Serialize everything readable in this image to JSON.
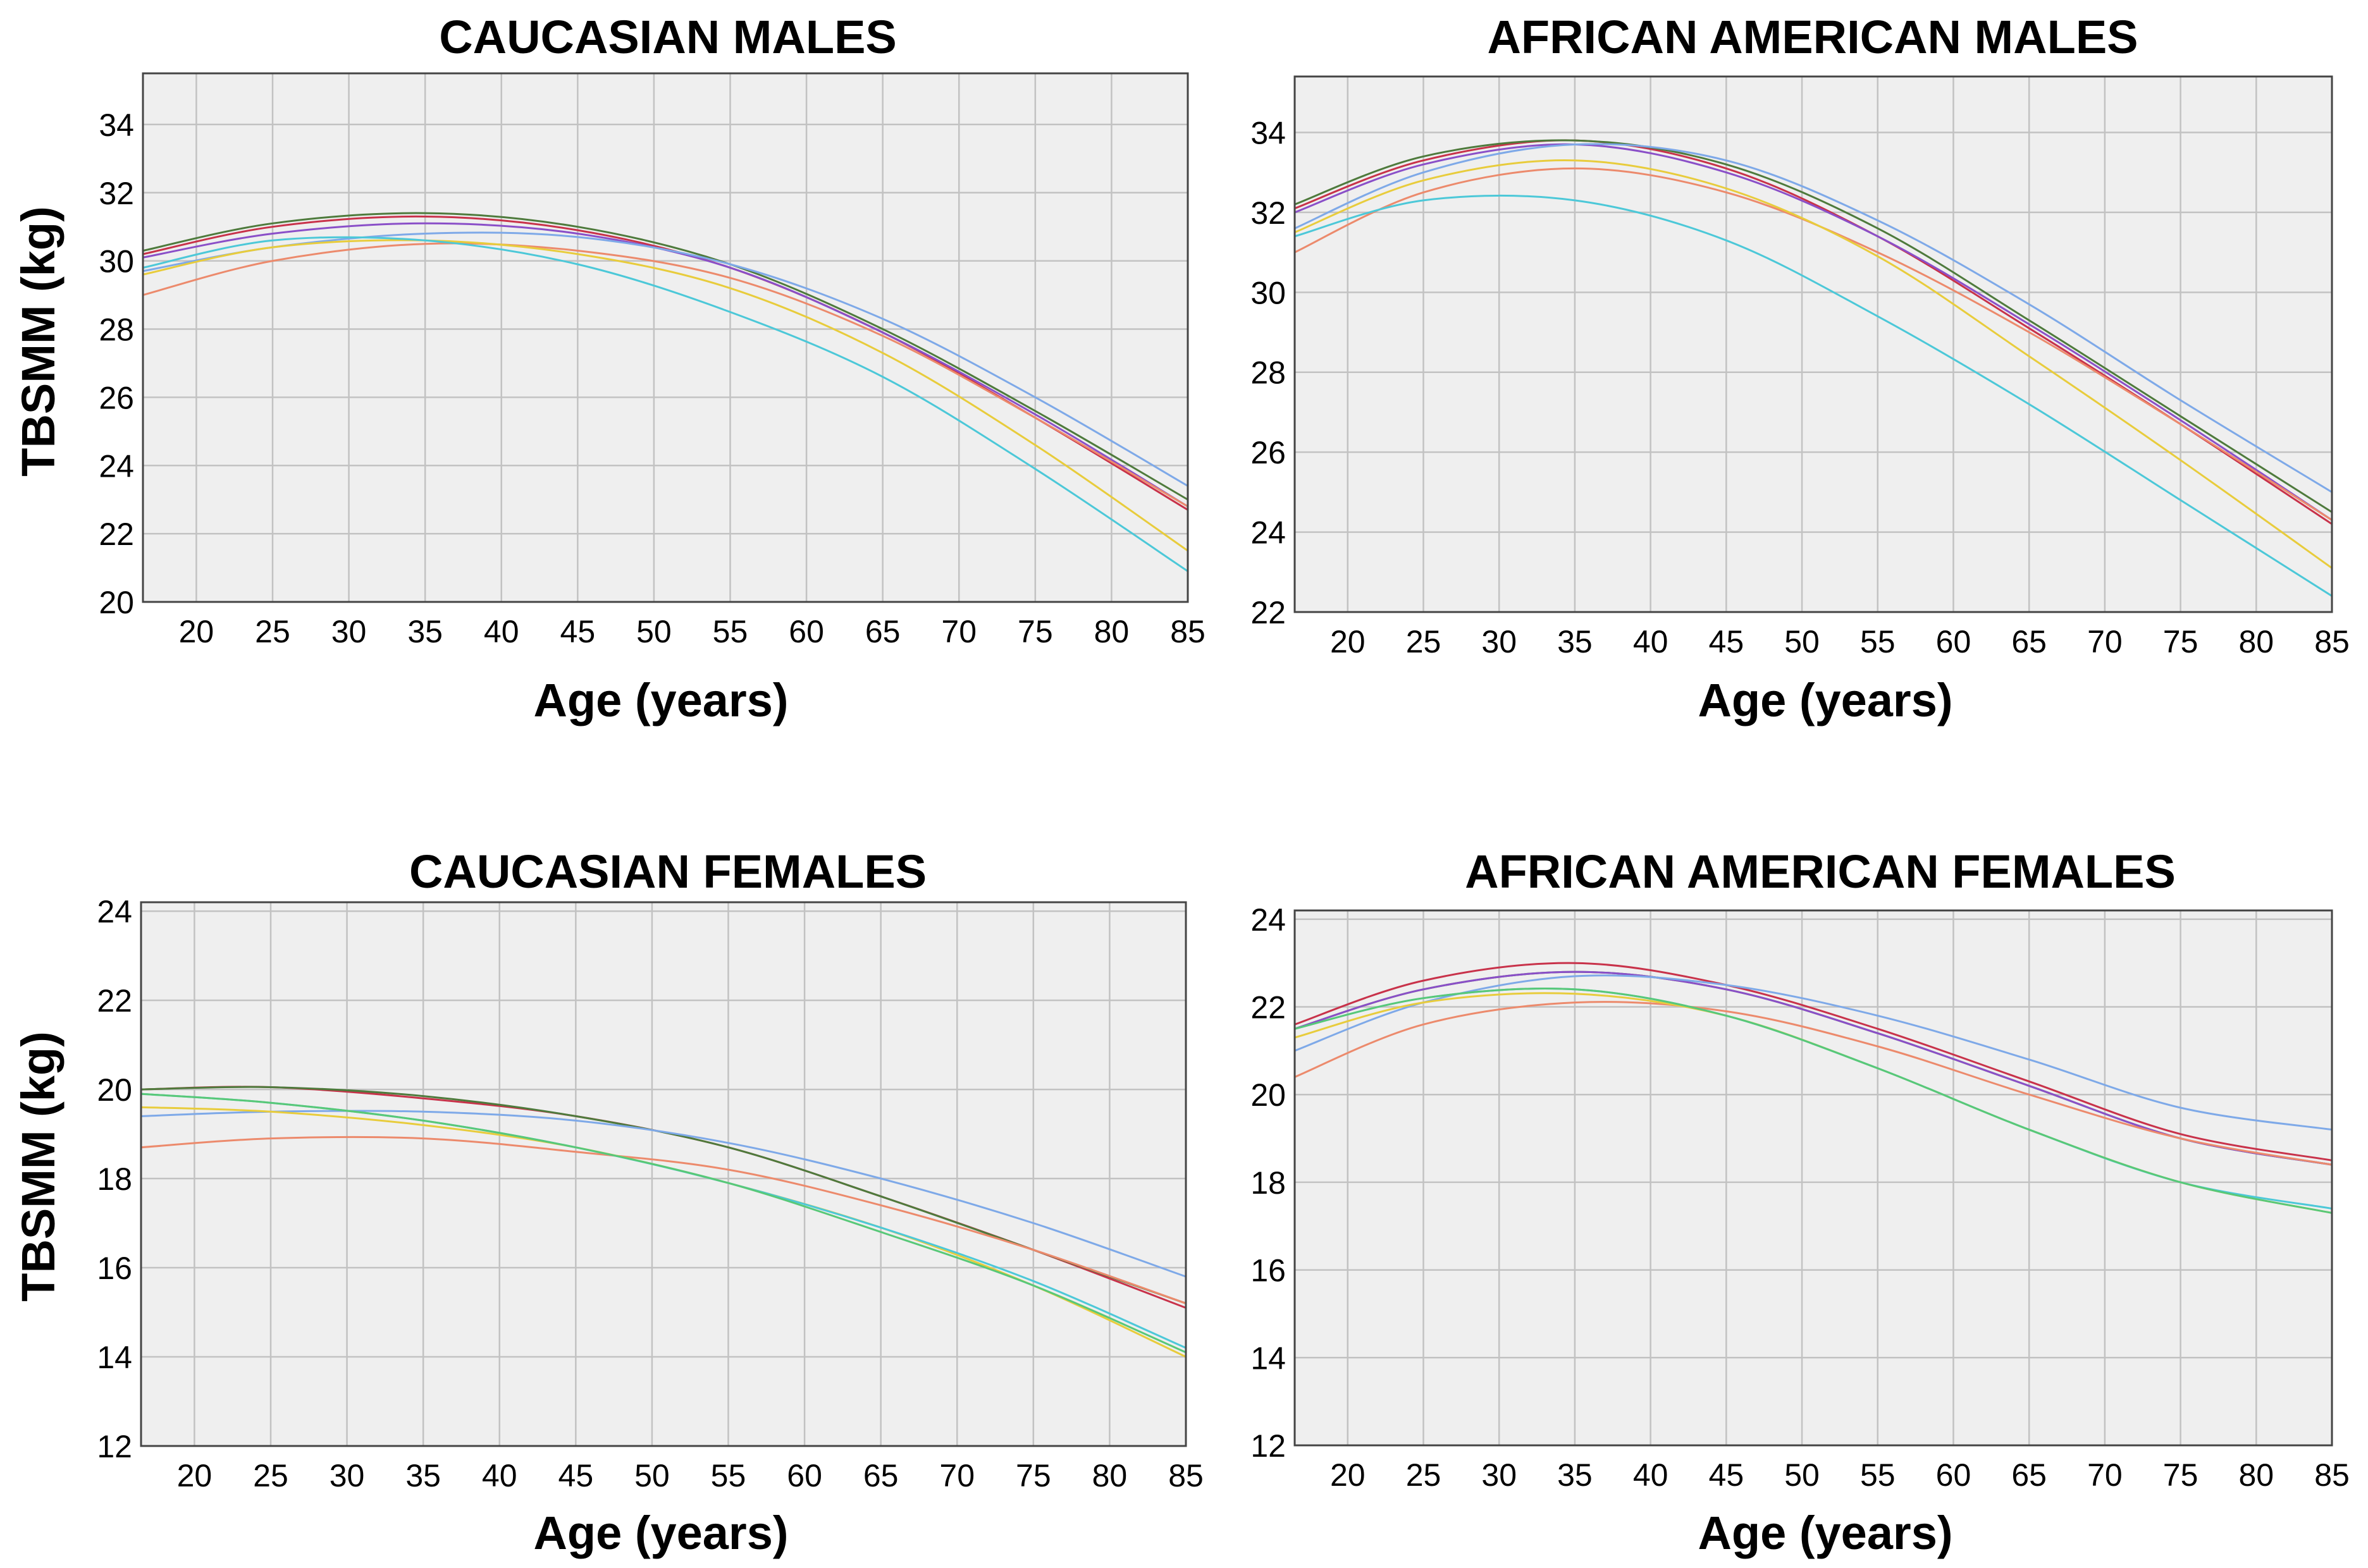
{
  "figure": {
    "ylabel": "TBSMM (kg)",
    "xlabel": "Age (years)"
  },
  "palette": {
    "red": "#c8324a",
    "dark_green": "#4e7a3c",
    "purple": "#8a4fc8",
    "blue": "#7ea9e8",
    "orange": "#ec8a6c",
    "yellow": "#e8cc3c",
    "cyan": "#4cc8d8",
    "green": "#58c878"
  },
  "chart_data": [
    {
      "id": "caucasian-males",
      "type": "line",
      "title": "CAUCASIAN MALES",
      "xlabel": "Age (years)",
      "ylabel": "TBSMM (kg)",
      "xlim": [
        16.5,
        85
      ],
      "ylim": [
        20,
        35.5
      ],
      "xticks": [
        20,
        25,
        30,
        35,
        40,
        45,
        50,
        55,
        60,
        65,
        70,
        75,
        80,
        85
      ],
      "yticks": [
        20,
        22,
        24,
        26,
        28,
        30,
        32,
        34
      ],
      "grid": true,
      "x": [
        16.5,
        25,
        35,
        45,
        55,
        65,
        75,
        85
      ],
      "series": [
        {
          "name": "red",
          "color": "#c8324a",
          "values": [
            30.2,
            31.0,
            31.3,
            30.9,
            29.8,
            27.9,
            25.4,
            22.7
          ]
        },
        {
          "name": "dark green",
          "color": "#4e7a3c",
          "values": [
            30.3,
            31.1,
            31.4,
            31.0,
            29.9,
            28.0,
            25.6,
            23.0
          ]
        },
        {
          "name": "purple",
          "color": "#8a4fc8",
          "values": [
            30.1,
            30.8,
            31.1,
            30.8,
            29.8,
            27.9,
            25.5,
            22.8
          ]
        },
        {
          "name": "blue",
          "color": "#7ea9e8",
          "values": [
            29.7,
            30.4,
            30.8,
            30.7,
            29.9,
            28.3,
            26.0,
            23.4
          ]
        },
        {
          "name": "orange",
          "color": "#ec8a6c",
          "values": [
            29.0,
            30.0,
            30.5,
            30.3,
            29.5,
            27.8,
            25.4,
            22.8
          ]
        },
        {
          "name": "yellow",
          "color": "#e8cc3c",
          "values": [
            29.6,
            30.4,
            30.6,
            30.2,
            29.2,
            27.3,
            24.6,
            21.5
          ]
        },
        {
          "name": "cyan",
          "color": "#4cc8d8",
          "values": [
            29.8,
            30.6,
            30.6,
            29.9,
            28.5,
            26.6,
            23.9,
            20.9
          ]
        }
      ]
    },
    {
      "id": "african-american-males",
      "type": "line",
      "title": "AFRICAN AMERICAN MALES",
      "xlabel": "Age (years)",
      "ylabel": "TBSMM (kg)",
      "xlim": [
        16.5,
        85
      ],
      "ylim": [
        22,
        35.4
      ],
      "xticks": [
        20,
        25,
        30,
        35,
        40,
        45,
        50,
        55,
        60,
        65,
        70,
        75,
        80,
        85
      ],
      "yticks": [
        22,
        24,
        26,
        28,
        30,
        32,
        34
      ],
      "grid": true,
      "x": [
        16.5,
        25,
        35,
        45,
        55,
        65,
        75,
        85
      ],
      "series": [
        {
          "name": "red",
          "color": "#c8324a",
          "values": [
            32.1,
            33.3,
            33.8,
            33.1,
            31.4,
            29.1,
            26.7,
            24.2
          ]
        },
        {
          "name": "dark green",
          "color": "#4e7a3c",
          "values": [
            32.2,
            33.4,
            33.8,
            33.2,
            31.6,
            29.3,
            26.9,
            24.5
          ]
        },
        {
          "name": "purple",
          "color": "#8a4fc8",
          "values": [
            32.0,
            33.2,
            33.7,
            33.0,
            31.4,
            29.2,
            26.8,
            24.3
          ]
        },
        {
          "name": "blue",
          "color": "#7ea9e8",
          "values": [
            31.6,
            33.0,
            33.7,
            33.3,
            31.8,
            29.7,
            27.3,
            25.0
          ]
        },
        {
          "name": "orange",
          "color": "#ec8a6c",
          "values": [
            31.0,
            32.5,
            33.1,
            32.5,
            31.0,
            29.0,
            26.7,
            24.3
          ]
        },
        {
          "name": "yellow",
          "color": "#e8cc3c",
          "values": [
            31.5,
            32.8,
            33.3,
            32.6,
            30.9,
            28.4,
            25.8,
            23.1
          ]
        },
        {
          "name": "cyan",
          "color": "#4cc8d8",
          "values": [
            31.4,
            32.3,
            32.3,
            31.3,
            29.4,
            27.2,
            24.8,
            22.4
          ]
        }
      ]
    },
    {
      "id": "caucasian-females",
      "type": "line",
      "title": "CAUCASIAN FEMALES",
      "xlabel": "Age (years)",
      "ylabel": "TBSMM (kg)",
      "xlim": [
        16.5,
        85
      ],
      "ylim": [
        12,
        24.2
      ],
      "xticks": [
        20,
        25,
        30,
        35,
        40,
        45,
        50,
        55,
        60,
        65,
        70,
        75,
        80,
        85
      ],
      "yticks": [
        12,
        14,
        16,
        18,
        20,
        22,
        24
      ],
      "grid": true,
      "x": [
        16.5,
        25,
        35,
        45,
        55,
        65,
        75,
        85
      ],
      "series": [
        {
          "name": "red",
          "color": "#c8324a",
          "values": [
            20.0,
            20.05,
            19.8,
            19.4,
            18.7,
            17.6,
            16.4,
            15.1
          ]
        },
        {
          "name": "dark green",
          "color": "#4e7a3c",
          "values": [
            20.0,
            20.05,
            19.85,
            19.4,
            18.7,
            17.6,
            16.4,
            15.2
          ]
        },
        {
          "name": "blue",
          "color": "#7ea9e8",
          "values": [
            19.4,
            19.5,
            19.5,
            19.3,
            18.8,
            18.0,
            17.0,
            15.8
          ]
        },
        {
          "name": "orange",
          "color": "#ec8a6c",
          "values": [
            18.7,
            18.9,
            18.9,
            18.6,
            18.2,
            17.4,
            16.4,
            15.2
          ]
        },
        {
          "name": "yellow",
          "color": "#e8cc3c",
          "values": [
            19.6,
            19.5,
            19.2,
            18.7,
            17.9,
            16.9,
            15.6,
            14.0
          ]
        },
        {
          "name": "cyan",
          "color": "#4cc8d8",
          "values": [
            19.9,
            19.7,
            19.3,
            18.7,
            17.9,
            16.9,
            15.7,
            14.2
          ]
        },
        {
          "name": "green",
          "color": "#58c878",
          "values": [
            19.9,
            19.7,
            19.3,
            18.7,
            17.9,
            16.8,
            15.6,
            14.1
          ]
        }
      ]
    },
    {
      "id": "african-american-females",
      "type": "line",
      "title": "AFRICAN AMERICAN FEMALES",
      "xlabel": "Age (years)",
      "ylabel": "TBSMM (kg)",
      "xlim": [
        16.5,
        85
      ],
      "ylim": [
        12,
        24.2
      ],
      "xticks": [
        20,
        25,
        30,
        35,
        40,
        45,
        50,
        55,
        60,
        65,
        70,
        75,
        80,
        85
      ],
      "yticks": [
        12,
        14,
        16,
        18,
        20,
        22,
        24
      ],
      "grid": true,
      "x": [
        16.5,
        25,
        35,
        45,
        55,
        65,
        75,
        85
      ],
      "series": [
        {
          "name": "red",
          "color": "#c8324a",
          "values": [
            21.6,
            22.6,
            23.0,
            22.5,
            21.5,
            20.3,
            19.1,
            18.5
          ]
        },
        {
          "name": "dark green",
          "color": "#4e7a3c",
          "values": [
            21.5,
            22.4,
            22.8,
            22.4,
            21.4,
            20.2,
            19.0,
            18.4
          ]
        },
        {
          "name": "purple",
          "color": "#8a4fc8",
          "values": [
            21.5,
            22.4,
            22.8,
            22.4,
            21.4,
            20.2,
            19.0,
            18.4
          ]
        },
        {
          "name": "blue",
          "color": "#7ea9e8",
          "values": [
            21.0,
            22.1,
            22.7,
            22.5,
            21.8,
            20.8,
            19.7,
            19.2
          ]
        },
        {
          "name": "orange",
          "color": "#ec8a6c",
          "values": [
            20.4,
            21.6,
            22.1,
            21.9,
            21.1,
            20.0,
            19.0,
            18.4
          ]
        },
        {
          "name": "yellow",
          "color": "#e8cc3c",
          "values": [
            21.3,
            22.1,
            22.3,
            21.8,
            20.6,
            19.2,
            18.0,
            17.3
          ]
        },
        {
          "name": "cyan",
          "color": "#4cc8d8",
          "values": [
            21.5,
            22.2,
            22.4,
            21.8,
            20.6,
            19.2,
            18.0,
            17.4
          ]
        },
        {
          "name": "green",
          "color": "#58c878",
          "values": [
            21.5,
            22.2,
            22.4,
            21.8,
            20.6,
            19.2,
            18.0,
            17.3
          ]
        }
      ]
    }
  ]
}
